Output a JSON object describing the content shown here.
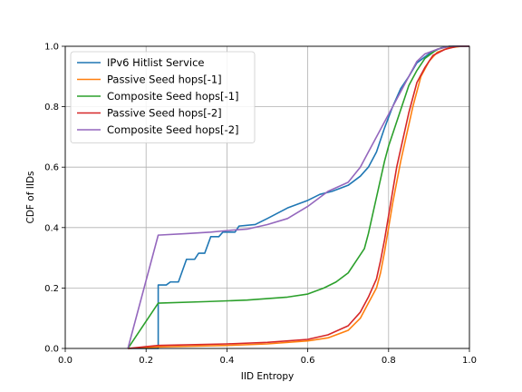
{
  "chart_data": {
    "type": "line",
    "xlabel": "IID Entropy",
    "ylabel": "CDF of IIDs",
    "xlim": [
      0.0,
      1.0
    ],
    "ylim": [
      0.0,
      1.0
    ],
    "xticks": [
      "0.0",
      "0.2",
      "0.4",
      "0.6",
      "0.8",
      "1.0"
    ],
    "yticks": [
      "0.0",
      "0.2",
      "0.4",
      "0.6",
      "0.8",
      "1.0"
    ],
    "grid": true,
    "legend": "upper-left",
    "series": [
      {
        "name": "IPv6 Hitlist Service",
        "color": "#1f77b4",
        "points": [
          [
            0.155,
            0.0
          ],
          [
            0.23,
            0.0
          ],
          [
            0.23,
            0.21
          ],
          [
            0.25,
            0.21
          ],
          [
            0.26,
            0.22
          ],
          [
            0.28,
            0.22
          ],
          [
            0.3,
            0.295
          ],
          [
            0.32,
            0.295
          ],
          [
            0.33,
            0.315
          ],
          [
            0.345,
            0.315
          ],
          [
            0.36,
            0.37
          ],
          [
            0.38,
            0.37
          ],
          [
            0.39,
            0.385
          ],
          [
            0.42,
            0.385
          ],
          [
            0.43,
            0.405
          ],
          [
            0.47,
            0.41
          ],
          [
            0.5,
            0.43
          ],
          [
            0.55,
            0.465
          ],
          [
            0.6,
            0.49
          ],
          [
            0.63,
            0.51
          ],
          [
            0.66,
            0.52
          ],
          [
            0.7,
            0.54
          ],
          [
            0.73,
            0.57
          ],
          [
            0.75,
            0.6
          ],
          [
            0.77,
            0.65
          ],
          [
            0.79,
            0.73
          ],
          [
            0.81,
            0.8
          ],
          [
            0.83,
            0.86
          ],
          [
            0.85,
            0.9
          ],
          [
            0.87,
            0.945
          ],
          [
            0.9,
            0.975
          ],
          [
            0.93,
            0.995
          ],
          [
            0.96,
            1.0
          ],
          [
            1.0,
            1.0
          ]
        ]
      },
      {
        "name": "Passive Seed hops[-1]",
        "color": "#ff7f0e",
        "points": [
          [
            0.155,
            0.0
          ],
          [
            0.23,
            0.005
          ],
          [
            0.4,
            0.01
          ],
          [
            0.5,
            0.015
          ],
          [
            0.6,
            0.025
          ],
          [
            0.65,
            0.035
          ],
          [
            0.7,
            0.06
          ],
          [
            0.73,
            0.1
          ],
          [
            0.75,
            0.15
          ],
          [
            0.77,
            0.2
          ],
          [
            0.78,
            0.25
          ],
          [
            0.79,
            0.32
          ],
          [
            0.8,
            0.4
          ],
          [
            0.81,
            0.48
          ],
          [
            0.82,
            0.55
          ],
          [
            0.83,
            0.62
          ],
          [
            0.84,
            0.68
          ],
          [
            0.85,
            0.74
          ],
          [
            0.86,
            0.8
          ],
          [
            0.87,
            0.85
          ],
          [
            0.88,
            0.9
          ],
          [
            0.9,
            0.95
          ],
          [
            0.92,
            0.98
          ],
          [
            0.95,
            0.995
          ],
          [
            0.98,
            1.0
          ],
          [
            1.0,
            1.0
          ]
        ]
      },
      {
        "name": "Composite Seed hops[-1]",
        "color": "#2ca02c",
        "points": [
          [
            0.155,
            0.0
          ],
          [
            0.23,
            0.15
          ],
          [
            0.35,
            0.155
          ],
          [
            0.45,
            0.16
          ],
          [
            0.5,
            0.165
          ],
          [
            0.55,
            0.17
          ],
          [
            0.6,
            0.18
          ],
          [
            0.64,
            0.2
          ],
          [
            0.67,
            0.22
          ],
          [
            0.7,
            0.25
          ],
          [
            0.72,
            0.29
          ],
          [
            0.74,
            0.33
          ],
          [
            0.75,
            0.38
          ],
          [
            0.76,
            0.44
          ],
          [
            0.77,
            0.5
          ],
          [
            0.78,
            0.56
          ],
          [
            0.79,
            0.62
          ],
          [
            0.8,
            0.67
          ],
          [
            0.81,
            0.71
          ],
          [
            0.82,
            0.75
          ],
          [
            0.83,
            0.79
          ],
          [
            0.84,
            0.83
          ],
          [
            0.85,
            0.87
          ],
          [
            0.87,
            0.92
          ],
          [
            0.89,
            0.96
          ],
          [
            0.92,
            0.99
          ],
          [
            0.95,
            1.0
          ],
          [
            1.0,
            1.0
          ]
        ]
      },
      {
        "name": "Passive Seed hops[-2]",
        "color": "#d62728",
        "points": [
          [
            0.155,
            0.0
          ],
          [
            0.23,
            0.01
          ],
          [
            0.4,
            0.015
          ],
          [
            0.5,
            0.02
          ],
          [
            0.6,
            0.03
          ],
          [
            0.65,
            0.045
          ],
          [
            0.7,
            0.075
          ],
          [
            0.73,
            0.12
          ],
          [
            0.75,
            0.17
          ],
          [
            0.77,
            0.23
          ],
          [
            0.78,
            0.29
          ],
          [
            0.79,
            0.36
          ],
          [
            0.8,
            0.44
          ],
          [
            0.81,
            0.52
          ],
          [
            0.82,
            0.6
          ],
          [
            0.83,
            0.66
          ],
          [
            0.84,
            0.72
          ],
          [
            0.85,
            0.78
          ],
          [
            0.86,
            0.83
          ],
          [
            0.87,
            0.88
          ],
          [
            0.89,
            0.93
          ],
          [
            0.91,
            0.97
          ],
          [
            0.94,
            0.99
          ],
          [
            0.97,
            1.0
          ],
          [
            1.0,
            1.0
          ]
        ]
      },
      {
        "name": "Composite Seed hops[-2]",
        "color": "#9467bd",
        "points": [
          [
            0.155,
            0.0
          ],
          [
            0.23,
            0.375
          ],
          [
            0.3,
            0.38
          ],
          [
            0.36,
            0.385
          ],
          [
            0.4,
            0.39
          ],
          [
            0.45,
            0.395
          ],
          [
            0.5,
            0.41
          ],
          [
            0.55,
            0.43
          ],
          [
            0.6,
            0.47
          ],
          [
            0.65,
            0.52
          ],
          [
            0.7,
            0.55
          ],
          [
            0.73,
            0.6
          ],
          [
            0.75,
            0.65
          ],
          [
            0.77,
            0.7
          ],
          [
            0.79,
            0.75
          ],
          [
            0.81,
            0.8
          ],
          [
            0.83,
            0.85
          ],
          [
            0.85,
            0.9
          ],
          [
            0.87,
            0.95
          ],
          [
            0.89,
            0.975
          ],
          [
            0.92,
            0.99
          ],
          [
            0.95,
            1.0
          ],
          [
            1.0,
            1.0
          ]
        ]
      }
    ]
  }
}
